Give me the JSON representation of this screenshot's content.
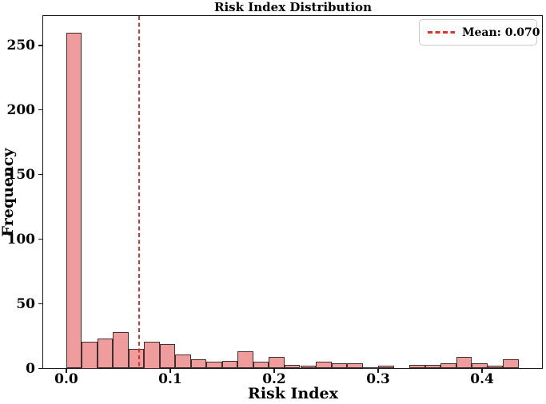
{
  "figure": {
    "title": "Risk Index Distribution",
    "x_axis_label": "Risk Index",
    "y_axis_label": "Frequency"
  },
  "legend": {
    "mean_label": "Mean: 0.070"
  },
  "chart_data": {
    "type": "bar",
    "subtype": "histogram",
    "title": "Risk Index Distribution",
    "xlabel": "Risk Index",
    "ylabel": "Frequency",
    "bin_width": 0.015,
    "bin_edges": [
      0.0,
      0.015,
      0.03,
      0.045,
      0.06,
      0.075,
      0.09,
      0.105,
      0.12,
      0.135,
      0.15,
      0.165,
      0.18,
      0.195,
      0.21,
      0.225,
      0.24,
      0.255,
      0.27,
      0.285,
      0.3,
      0.315,
      0.33,
      0.345,
      0.36,
      0.375,
      0.39,
      0.405,
      0.42,
      0.435
    ],
    "counts": [
      260,
      21,
      23,
      28,
      15,
      21,
      19,
      11,
      7,
      5,
      6,
      13,
      5,
      9,
      3,
      2,
      5,
      4,
      4,
      1,
      2,
      0,
      3,
      3,
      4,
      9,
      4,
      2,
      7
    ],
    "mean_line": {
      "x": 0.07,
      "label": "Mean: 0.070",
      "style": "dashed"
    },
    "x_ticks": [
      0.0,
      0.1,
      0.2,
      0.3,
      0.4
    ],
    "y_ticks": [
      0,
      50,
      100,
      150,
      200,
      250
    ],
    "xlim": [
      -0.023,
      0.458
    ],
    "ylim": [
      0,
      273
    ],
    "grid": false,
    "legend_position": "upper right",
    "colors": {
      "bar_fill": "#f09c9c",
      "bar_edge": "#3e2f2f",
      "mean_line": "#e0312b",
      "spine": "#1a1a1a",
      "text": "#000000",
      "legend_border": "#c9c9c9",
      "background": "#ffffff"
    }
  }
}
